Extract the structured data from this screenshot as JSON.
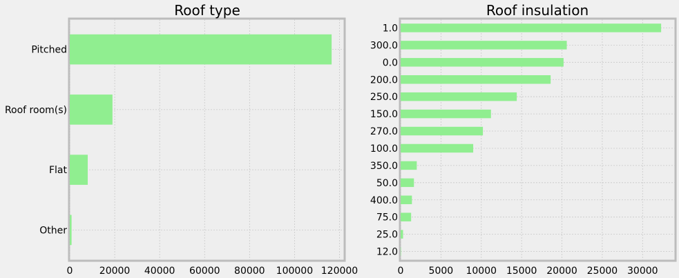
{
  "chart_data": [
    {
      "type": "bar",
      "orientation": "horizontal",
      "title": "Roof type",
      "xlabel": "",
      "ylabel": "",
      "categories": [
        "Pitched",
        "Roof room(s)",
        "Flat",
        "Other"
      ],
      "values": [
        116500,
        19000,
        8000,
        800
      ],
      "xlim": [
        0,
        122000
      ],
      "xticks": [
        0,
        20000,
        40000,
        60000,
        80000,
        100000,
        120000
      ],
      "grid": true,
      "bar_color": "#90ee90"
    },
    {
      "type": "bar",
      "orientation": "horizontal",
      "title": "Roof insulation",
      "xlabel": "",
      "ylabel": "",
      "categories": [
        "1.0",
        "300.0",
        "0.0",
        "200.0",
        "250.0",
        "150.0",
        "270.0",
        "100.0",
        "350.0",
        "50.0",
        "400.0",
        "75.0",
        "25.0",
        "12.0"
      ],
      "values": [
        32300,
        20600,
        20200,
        18600,
        14400,
        11200,
        10200,
        9000,
        2000,
        1650,
        1400,
        1300,
        300,
        50
      ],
      "xlim": [
        0,
        34000
      ],
      "xticks": [
        0,
        5000,
        10000,
        15000,
        20000,
        25000,
        30000
      ],
      "grid": true,
      "bar_color": "#90ee90"
    }
  ]
}
